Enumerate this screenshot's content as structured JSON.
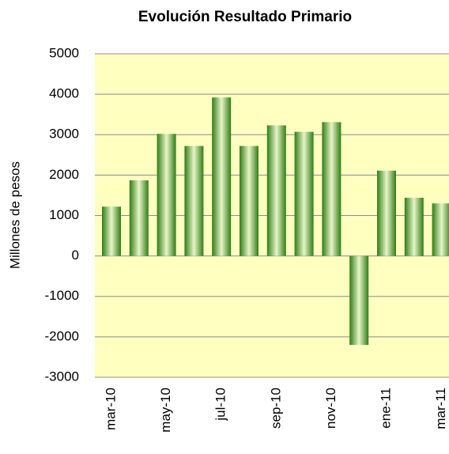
{
  "chart_data": {
    "type": "bar",
    "title": "Evolución Resultado  Primario",
    "y_label": "Millones de pesos",
    "categories": [
      "mar-10",
      null,
      "may-10",
      null,
      "jul-10",
      null,
      "sep-10",
      null,
      "nov-10",
      null,
      "ene-11",
      null,
      "mar-11"
    ],
    "values": [
      1220,
      1870,
      3020,
      2720,
      3920,
      2720,
      3230,
      3070,
      3310,
      -2200,
      2110,
      1440,
      1300
    ],
    "color": "#2f7d14",
    "plot_background": "#ffffc0",
    "ylim": [
      -3000,
      5000
    ],
    "yticks": [
      -3000,
      -2000,
      -1000,
      0,
      1000,
      2000,
      3000,
      4000,
      5000
    ],
    "grid": true
  }
}
